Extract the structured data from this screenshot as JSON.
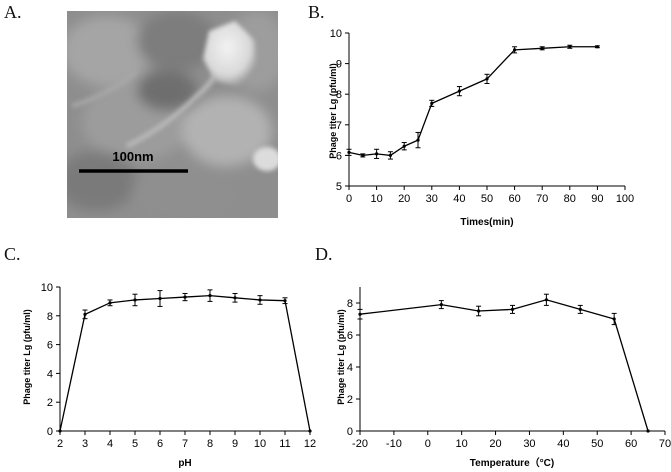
{
  "panels": {
    "a": {
      "letter": "A.",
      "scale_bar_label": "100nm"
    },
    "b": {
      "letter": "B."
    },
    "c": {
      "letter": "C."
    },
    "d": {
      "letter": "D."
    }
  },
  "chart_data": [
    {
      "id": "b",
      "type": "line",
      "xlabel": "Times(min)",
      "ylabel": "Phage titer Lg (pfu/ml)",
      "xlim": [
        0,
        100
      ],
      "ylim": [
        5,
        10
      ],
      "xticks": [
        0,
        10,
        20,
        30,
        40,
        50,
        60,
        70,
        80,
        90,
        100
      ],
      "yticks": [
        5,
        6,
        7,
        8,
        9,
        10
      ],
      "grid": false,
      "series": [
        {
          "x": [
            0,
            5,
            10,
            15,
            20,
            25,
            30,
            40,
            50,
            60,
            70,
            80,
            90
          ],
          "y": [
            6.1,
            6.0,
            6.05,
            6.0,
            6.3,
            6.5,
            7.7,
            8.1,
            8.5,
            9.45,
            9.5,
            9.55,
            9.55
          ],
          "err": [
            0.1,
            0.05,
            0.15,
            0.12,
            0.12,
            0.25,
            0.1,
            0.15,
            0.15,
            0.1,
            0.05,
            0.05,
            0.03
          ]
        }
      ]
    },
    {
      "id": "c",
      "type": "line",
      "xlabel": "pH",
      "ylabel": "Phage titer Lg (pfu/ml)",
      "xlim": [
        2,
        12
      ],
      "ylim": [
        0,
        10
      ],
      "xticks": [
        2,
        3,
        4,
        5,
        6,
        7,
        8,
        9,
        10,
        11,
        12
      ],
      "yticks": [
        0,
        2,
        4,
        6,
        8,
        10
      ],
      "grid": false,
      "series": [
        {
          "x": [
            2,
            3,
            4,
            5,
            6,
            7,
            8,
            9,
            10,
            11,
            12
          ],
          "y": [
            0,
            8.1,
            8.9,
            9.1,
            9.2,
            9.3,
            9.4,
            9.25,
            9.1,
            9.05,
            0
          ],
          "err": [
            0,
            0.3,
            0.2,
            0.4,
            0.55,
            0.25,
            0.4,
            0.3,
            0.3,
            0.2,
            0
          ]
        }
      ]
    },
    {
      "id": "d",
      "type": "line",
      "xlabel": "Temperature（°C)",
      "ylabel": "Phage titer Lg (pfu/ml)",
      "xlim": [
        -20,
        70
      ],
      "ylim": [
        0,
        9
      ],
      "xticks": [
        -20,
        -10,
        0,
        10,
        20,
        30,
        40,
        50,
        60,
        70
      ],
      "yticks": [
        0,
        2,
        4,
        6,
        8
      ],
      "grid": false,
      "series": [
        {
          "x": [
            -20,
            4,
            15,
            25,
            35,
            45,
            55,
            65
          ],
          "y": [
            7.3,
            7.9,
            7.5,
            7.6,
            8.2,
            7.6,
            7.0,
            0
          ],
          "err": [
            0.3,
            0.25,
            0.3,
            0.25,
            0.35,
            0.25,
            0.35,
            0
          ]
        }
      ]
    }
  ]
}
